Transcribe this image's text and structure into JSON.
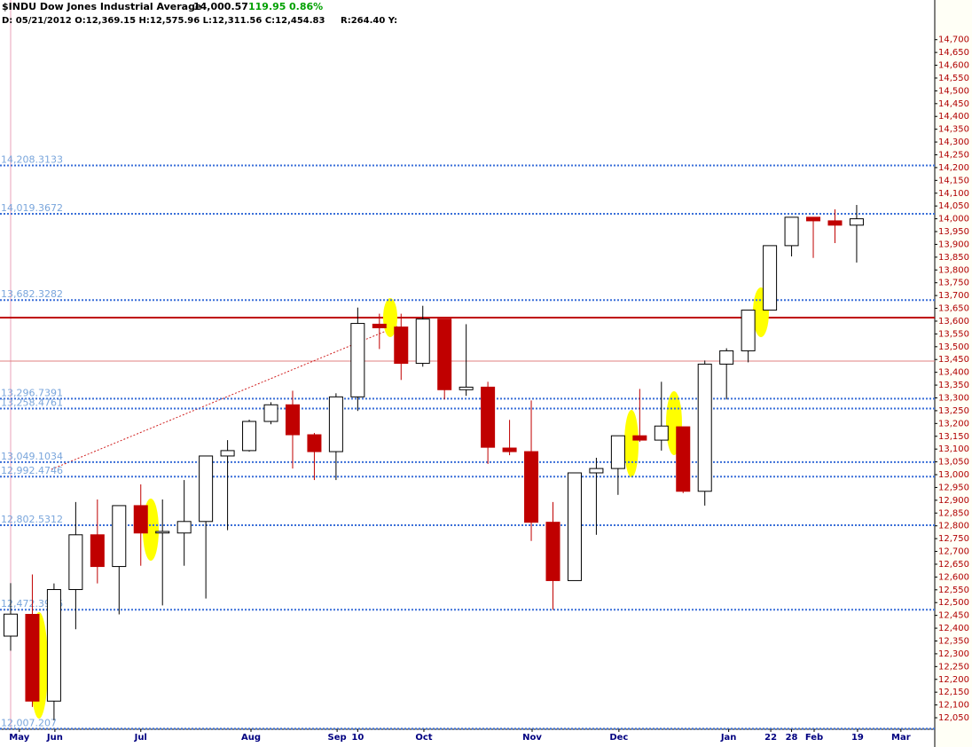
{
  "chart_data": {
    "type": "candlestick",
    "title": "$INDU Dow Jones Industrial Average",
    "last": "14,000.57",
    "change": "119.95",
    "change_pct": "0.86%",
    "detail": "D: 05/21/2012 O:12,369.15 H:12,575.96 L:12,311.56 C:12,454.83",
    "range": "R:264.40 Y:",
    "up_color": "#ffffff",
    "down_color": "#c00000",
    "level_color": "#3a6fd8",
    "x": [
      0,
      1,
      2,
      3,
      4,
      5,
      6,
      7,
      8,
      9,
      10,
      11,
      12,
      13,
      14,
      15,
      16,
      17,
      18,
      19,
      20,
      21,
      22,
      23,
      24,
      25,
      26,
      27,
      28,
      29,
      30,
      31,
      32,
      33,
      34,
      35,
      36,
      37,
      38,
      39
    ],
    "open": [
      12369,
      12454,
      12115,
      12551,
      12765,
      12641,
      12879,
      12772,
      12772,
      12817,
      13073,
      13094,
      13208,
      13273,
      13156,
      13090,
      13304,
      13588,
      13577,
      13435,
      13608,
      13332,
      13342,
      13104,
      13090,
      12814,
      12586,
      13007,
      13024,
      13152,
      13135,
      13187,
      12935,
      13432,
      13484,
      13643,
      13895,
      14006,
      13992,
      13975
    ],
    "high": [
      12576,
      12610,
      12575,
      12893,
      12903,
      12879,
      12962,
      12903,
      12979,
      13073,
      13135,
      13215,
      13283,
      13328,
      13163,
      13318,
      13653,
      13629,
      13629,
      13660,
      13608,
      13588,
      13363,
      13214,
      13290,
      12893,
      13007,
      13066,
      13152,
      13335,
      13363,
      13187,
      13446,
      13494,
      13643,
      13895,
      14006,
      14006,
      14037,
      14054
    ],
    "low": [
      12312,
      12092,
      12040,
      12396,
      12575,
      12454,
      12644,
      12489,
      12644,
      12516,
      12783,
      13090,
      13197,
      13024,
      12979,
      12979,
      13249,
      13491,
      13370,
      13422,
      13294,
      13308,
      13042,
      13076,
      12741,
      12472,
      12586,
      12765,
      12921,
      13128,
      13094,
      12928,
      12879,
      13294,
      13439,
      13643,
      13853,
      13847,
      13905,
      13829
    ],
    "close": [
      12455,
      12115,
      12551,
      12765,
      12641,
      12879,
      12772,
      12778,
      12817,
      13073,
      13094,
      13208,
      13273,
      13156,
      13090,
      13304,
      13591,
      13574,
      13435,
      13608,
      13332,
      13342,
      13107,
      13090,
      12814,
      12586,
      13007,
      13024,
      13152,
      13135,
      13190,
      12935,
      13432,
      13484,
      13643,
      13895,
      14006,
      13992,
      13975,
      14000
    ],
    "xlim": [
      -0.49,
      42.6
    ],
    "ylim": [
      12005,
      14855
    ],
    "xticks": [
      {
        "value": 0.4,
        "label": "May"
      },
      {
        "value": 2.04,
        "label": "Jun"
      },
      {
        "value": 6.0,
        "label": "Jul"
      },
      {
        "value": 11.08,
        "label": "Aug"
      },
      {
        "value": 15.05,
        "label": "Sep"
      },
      {
        "value": 16.0,
        "label": "10"
      },
      {
        "value": 19.05,
        "label": "Oct"
      },
      {
        "value": 24.04,
        "label": "Nov"
      },
      {
        "value": 28.04,
        "label": "Dec"
      },
      {
        "value": 33.1,
        "label": "Jan"
      },
      {
        "value": 35.04,
        "label": "22"
      },
      {
        "value": 36.0,
        "label": "28"
      },
      {
        "value": 37.04,
        "label": "Feb"
      },
      {
        "value": 39.04,
        "label": "19"
      },
      {
        "value": 41.04,
        "label": "Mar"
      }
    ],
    "levels": [
      {
        "value": 14208.3133,
        "label": "14,208.3133"
      },
      {
        "value": 14019.3672,
        "label": "14,019.3672"
      },
      {
        "value": 13682.3282,
        "label": "13,682.3282"
      },
      {
        "value": 13296.7391,
        "label": "13,296.7391"
      },
      {
        "value": 13258.4761,
        "label": "13,258.4761"
      },
      {
        "value": 13049.1034,
        "label": "13,049.1034"
      },
      {
        "value": 12992.4746,
        "label": "12,992.4746"
      },
      {
        "value": 12802.5312,
        "label": "12,802.5312"
      },
      {
        "value": 12472.3966,
        "label": "12,472.3966"
      },
      {
        "value": 12007.207,
        "label": "12,007.207"
      }
    ],
    "yticks": [
      {
        "value": 12050,
        "label": "12,050"
      },
      {
        "value": 12100,
        "label": "12,100"
      },
      {
        "value": 12150,
        "label": "12,150"
      },
      {
        "value": 12200,
        "label": "12,200"
      },
      {
        "value": 12250,
        "label": "12,250"
      },
      {
        "value": 12300,
        "label": "12,300"
      },
      {
        "value": 12350,
        "label": "12,350"
      },
      {
        "value": 12400,
        "label": "12,400"
      },
      {
        "value": 12450,
        "label": "12,450"
      },
      {
        "value": 12500,
        "label": "12,500"
      },
      {
        "value": 12550,
        "label": "12,550"
      },
      {
        "value": 12600,
        "label": "12,600"
      },
      {
        "value": 12650,
        "label": "12,650"
      },
      {
        "value": 12700,
        "label": "12,700"
      },
      {
        "value": 12750,
        "label": "12,750"
      },
      {
        "value": 12800,
        "label": "12,800"
      },
      {
        "value": 12850,
        "label": "12,850"
      },
      {
        "value": 12900,
        "label": "12,900"
      },
      {
        "value": 12950,
        "label": "12,950"
      },
      {
        "value": 13000,
        "label": "13,000"
      },
      {
        "value": 13050,
        "label": "13,050"
      },
      {
        "value": 13100,
        "label": "13,100"
      },
      {
        "value": 13150,
        "label": "13,150"
      },
      {
        "value": 13200,
        "label": "13,200"
      },
      {
        "value": 13250,
        "label": "13,250"
      },
      {
        "value": 13300,
        "label": "13,300"
      },
      {
        "value": 13350,
        "label": "13,350"
      },
      {
        "value": 13400,
        "label": "13,400"
      },
      {
        "value": 13450,
        "label": "13,450"
      },
      {
        "value": 13500,
        "label": "13,500"
      },
      {
        "value": 13550,
        "label": "13,550"
      },
      {
        "value": 13600,
        "label": "13,600"
      },
      {
        "value": 13650,
        "label": "13,650"
      },
      {
        "value": 13700,
        "label": "13,700"
      },
      {
        "value": 13750,
        "label": "13,750"
      },
      {
        "value": 13800,
        "label": "13,800"
      },
      {
        "value": 13850,
        "label": "13,850"
      },
      {
        "value": 13900,
        "label": "13,900"
      },
      {
        "value": 13950,
        "label": "13,950"
      },
      {
        "value": 14000,
        "label": "14,000"
      },
      {
        "value": 14050,
        "label": "14,050"
      },
      {
        "value": 14100,
        "label": "14,100"
      },
      {
        "value": 14150,
        "label": "14,150"
      },
      {
        "value": 14200,
        "label": "14,200"
      },
      {
        "value": 14250,
        "label": "14,250"
      },
      {
        "value": 14300,
        "label": "14,300"
      },
      {
        "value": 14350,
        "label": "14,350"
      },
      {
        "value": 14400,
        "label": "14,400"
      },
      {
        "value": 14450,
        "label": "14,450"
      },
      {
        "value": 14500,
        "label": "14,500"
      },
      {
        "value": 14550,
        "label": "14,550"
      },
      {
        "value": 14600,
        "label": "14,600"
      },
      {
        "value": 14650,
        "label": "14,650"
      },
      {
        "value": 14700,
        "label": "14,700"
      }
    ]
  }
}
